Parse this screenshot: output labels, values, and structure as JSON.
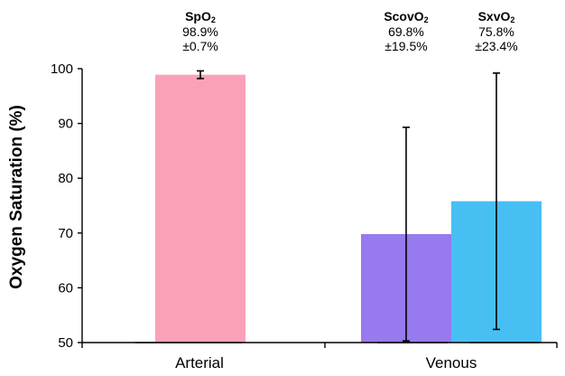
{
  "chart_data": {
    "type": "bar",
    "ylabel": "Oxygen Saturation (%)",
    "ylim": [
      50,
      100
    ],
    "yticks": [
      50,
      60,
      70,
      80,
      90,
      100
    ],
    "categories": [
      "Arterial",
      "Venous"
    ],
    "grid": false,
    "bars": [
      {
        "category": "Arterial",
        "name_base": "SpO",
        "name_sub": "2",
        "value": 98.9,
        "error": 0.7,
        "value_label": "98.9%",
        "error_label": "±0.7%",
        "color": "#FBA1B7"
      },
      {
        "category": "Venous",
        "name_base": "ScovO",
        "name_sub": "2",
        "value": 69.8,
        "error": 19.5,
        "value_label": "69.8%",
        "error_label": "±19.5%",
        "color": "#977AEE"
      },
      {
        "category": "Venous",
        "name_base": "SxvO",
        "name_sub": "2",
        "value": 75.8,
        "error": 23.4,
        "value_label": "75.8%",
        "error_label": "±23.4%",
        "color": "#48BFF3"
      }
    ]
  }
}
